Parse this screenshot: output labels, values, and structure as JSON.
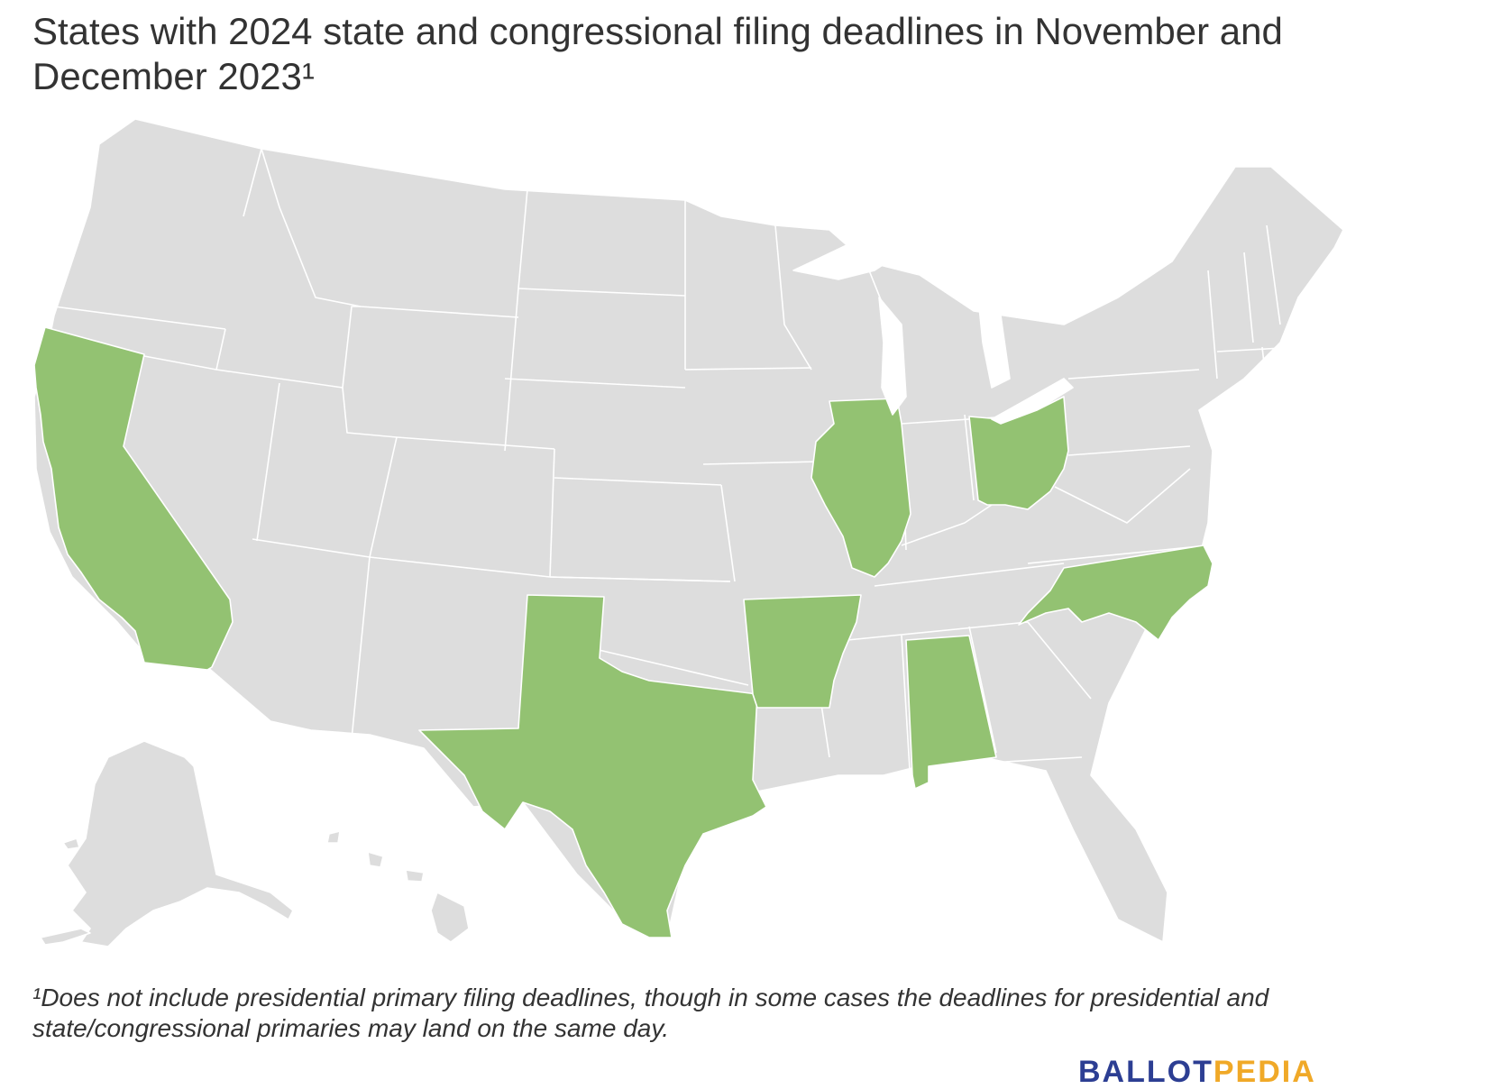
{
  "title": "States with 2024 state and congressional filing deadlines in November and December 2023¹",
  "footnote": "¹Does not include presidential primary filing deadlines, though in some cases the deadlines for presidential and state/congressional primaries may land on the same day.",
  "brand": {
    "part1": "BALLOT",
    "part2": "PEDIA"
  },
  "colors": {
    "highlighted": "#93c272",
    "other": "#dddddd",
    "border": "#ffffff",
    "brand_primary": "#2c3e93",
    "brand_accent": "#f0a928"
  },
  "map_data": {
    "highlighted_states": [
      "California",
      "Texas",
      "Arkansas",
      "Illinois",
      "Ohio",
      "Alabama",
      "North Carolina"
    ]
  }
}
